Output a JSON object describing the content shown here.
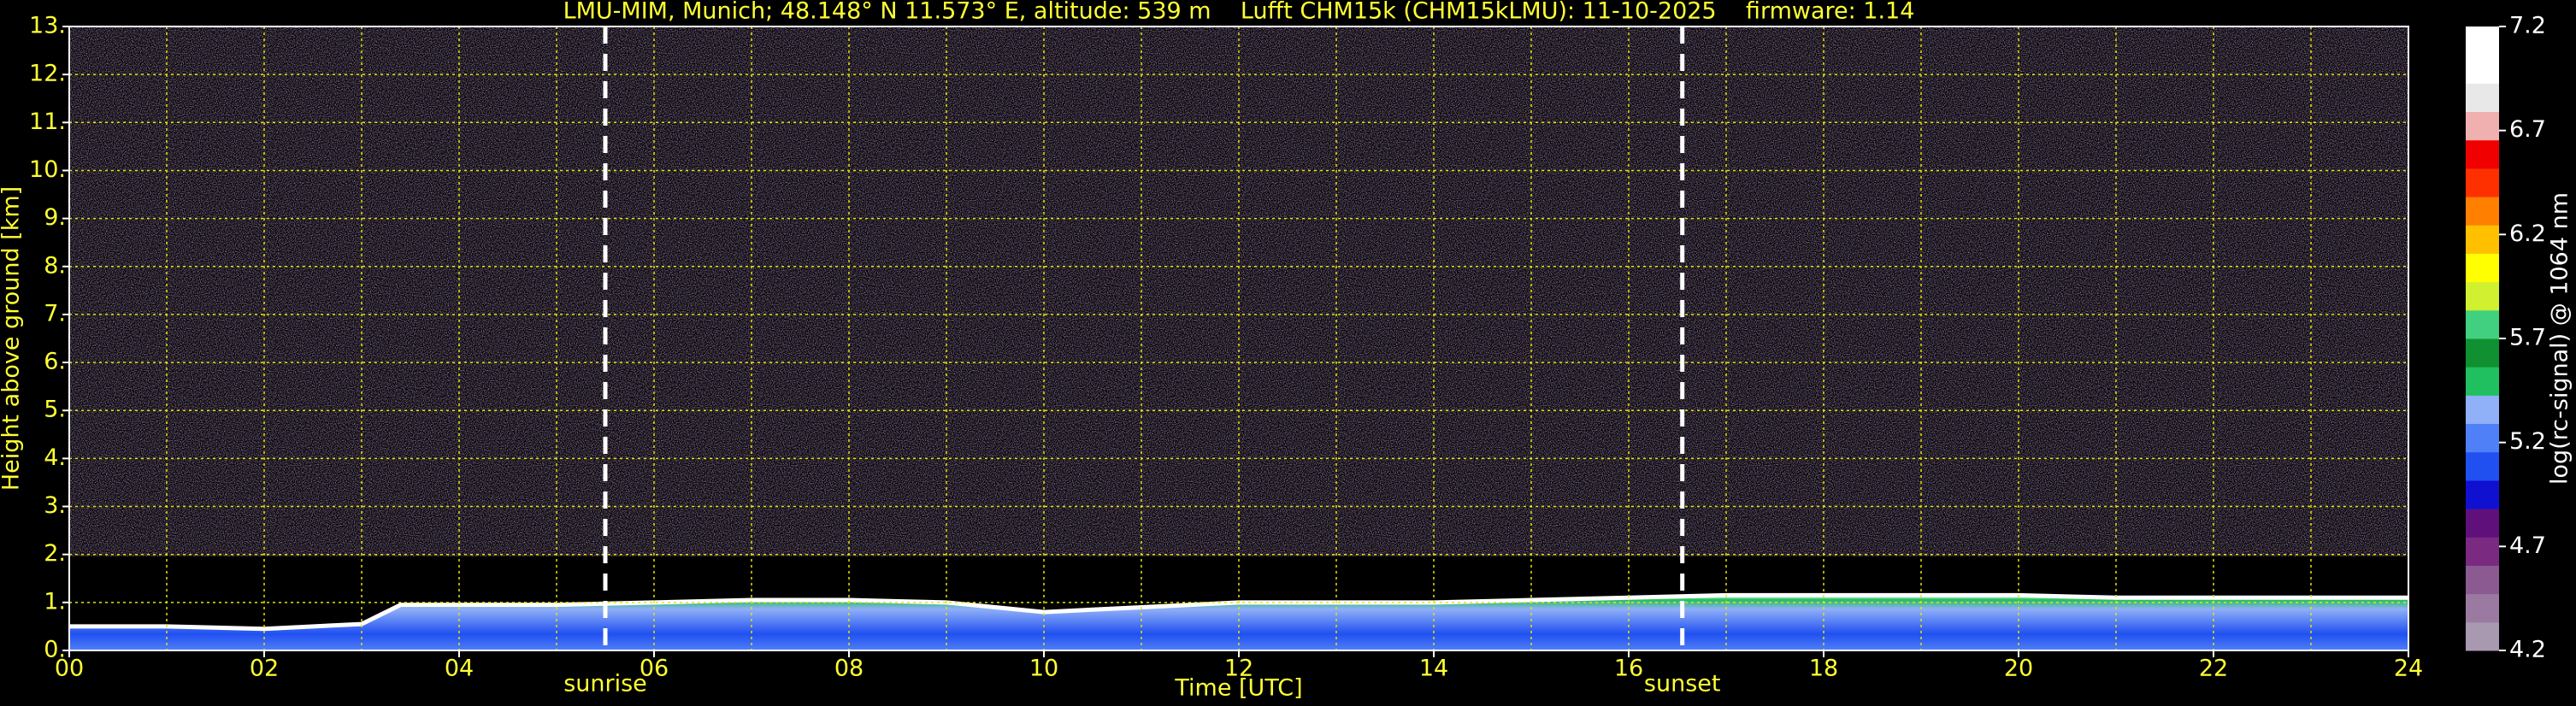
{
  "chart_data": {
    "type": "heatmap",
    "title": "LMU-MIM, Munich; 48.148° N 11.573° E, altitude: 539 m    Lufft CHM15k (CHM15kLMU): 11-10-2025    firmware: 1.14",
    "x_label": "Time [UTC]",
    "y_label": "Height above ground [km]",
    "colorbar_label": "log(rc-signal) @ 1064 nm",
    "x": [
      0,
      1,
      2,
      3,
      3.4,
      4,
      5,
      6,
      7,
      8,
      9,
      10,
      11,
      12,
      13,
      14,
      15,
      16,
      17,
      18,
      19,
      20,
      21,
      22,
      23,
      24
    ],
    "values": [
      0.5,
      0.5,
      0.45,
      0.55,
      0.95,
      0.95,
      0.95,
      1.0,
      1.05,
      1.05,
      1.0,
      0.8,
      0.9,
      1.0,
      1.0,
      1.0,
      1.05,
      1.1,
      1.15,
      1.15,
      1.15,
      1.15,
      1.1,
      1.1,
      1.1,
      1.1
    ],
    "xlim": [
      0,
      24
    ],
    "xticks": [
      {
        "value": 0,
        "label": "00"
      },
      {
        "value": 2,
        "label": "02"
      },
      {
        "value": 4,
        "label": "04"
      },
      {
        "value": 6,
        "label": "06"
      },
      {
        "value": 8,
        "label": "08"
      },
      10,
      12,
      14,
      16,
      18,
      20,
      22,
      24
    ],
    "xgrid_minor": [
      1,
      3,
      5,
      7,
      9,
      11,
      13,
      15,
      17,
      19,
      21,
      23
    ],
    "ylim": [
      0,
      13
    ],
    "yticks": [
      {
        "value": 0,
        "label": "0."
      },
      {
        "value": 1,
        "label": "1."
      },
      {
        "value": 2,
        "label": "2."
      },
      {
        "value": 3,
        "label": "3."
      },
      {
        "value": 4,
        "label": "4."
      },
      {
        "value": 5,
        "label": "5."
      },
      {
        "value": 6,
        "label": "6."
      },
      {
        "value": 7,
        "label": "7."
      },
      {
        "value": 8,
        "label": "8."
      },
      {
        "value": 9,
        "label": "9."
      },
      {
        "value": 10,
        "label": "10."
      },
      {
        "value": 11,
        "label": "11."
      },
      {
        "value": 12,
        "label": "12."
      },
      {
        "value": 13,
        "label": "13."
      }
    ],
    "grid": true,
    "grid_color": "#e6e600",
    "annotations": [
      {
        "text": "sunrise",
        "x": 5.5
      },
      {
        "text": "sunset",
        "x": 16.55
      }
    ],
    "clim": [
      4.2,
      7.2
    ],
    "cticks": [
      4.2,
      4.7,
      5.2,
      5.7,
      6.2,
      6.7,
      7.2
    ],
    "colors": [
      "#a898b0",
      "#9a7aa0",
      "#8a5a90",
      "#7a2a80",
      "#60107a",
      "#1010d0",
      "#2050f0",
      "#5080f8",
      "#90b0f8",
      "#20c060",
      "#109030",
      "#40d080",
      "#d0f030",
      "#ffff00",
      "#ffc000",
      "#ff8000",
      "#ff3000",
      "#f00000",
      "#f0b0b0",
      "#e8e8e8",
      "#ffffff",
      "#ffffff"
    ]
  }
}
